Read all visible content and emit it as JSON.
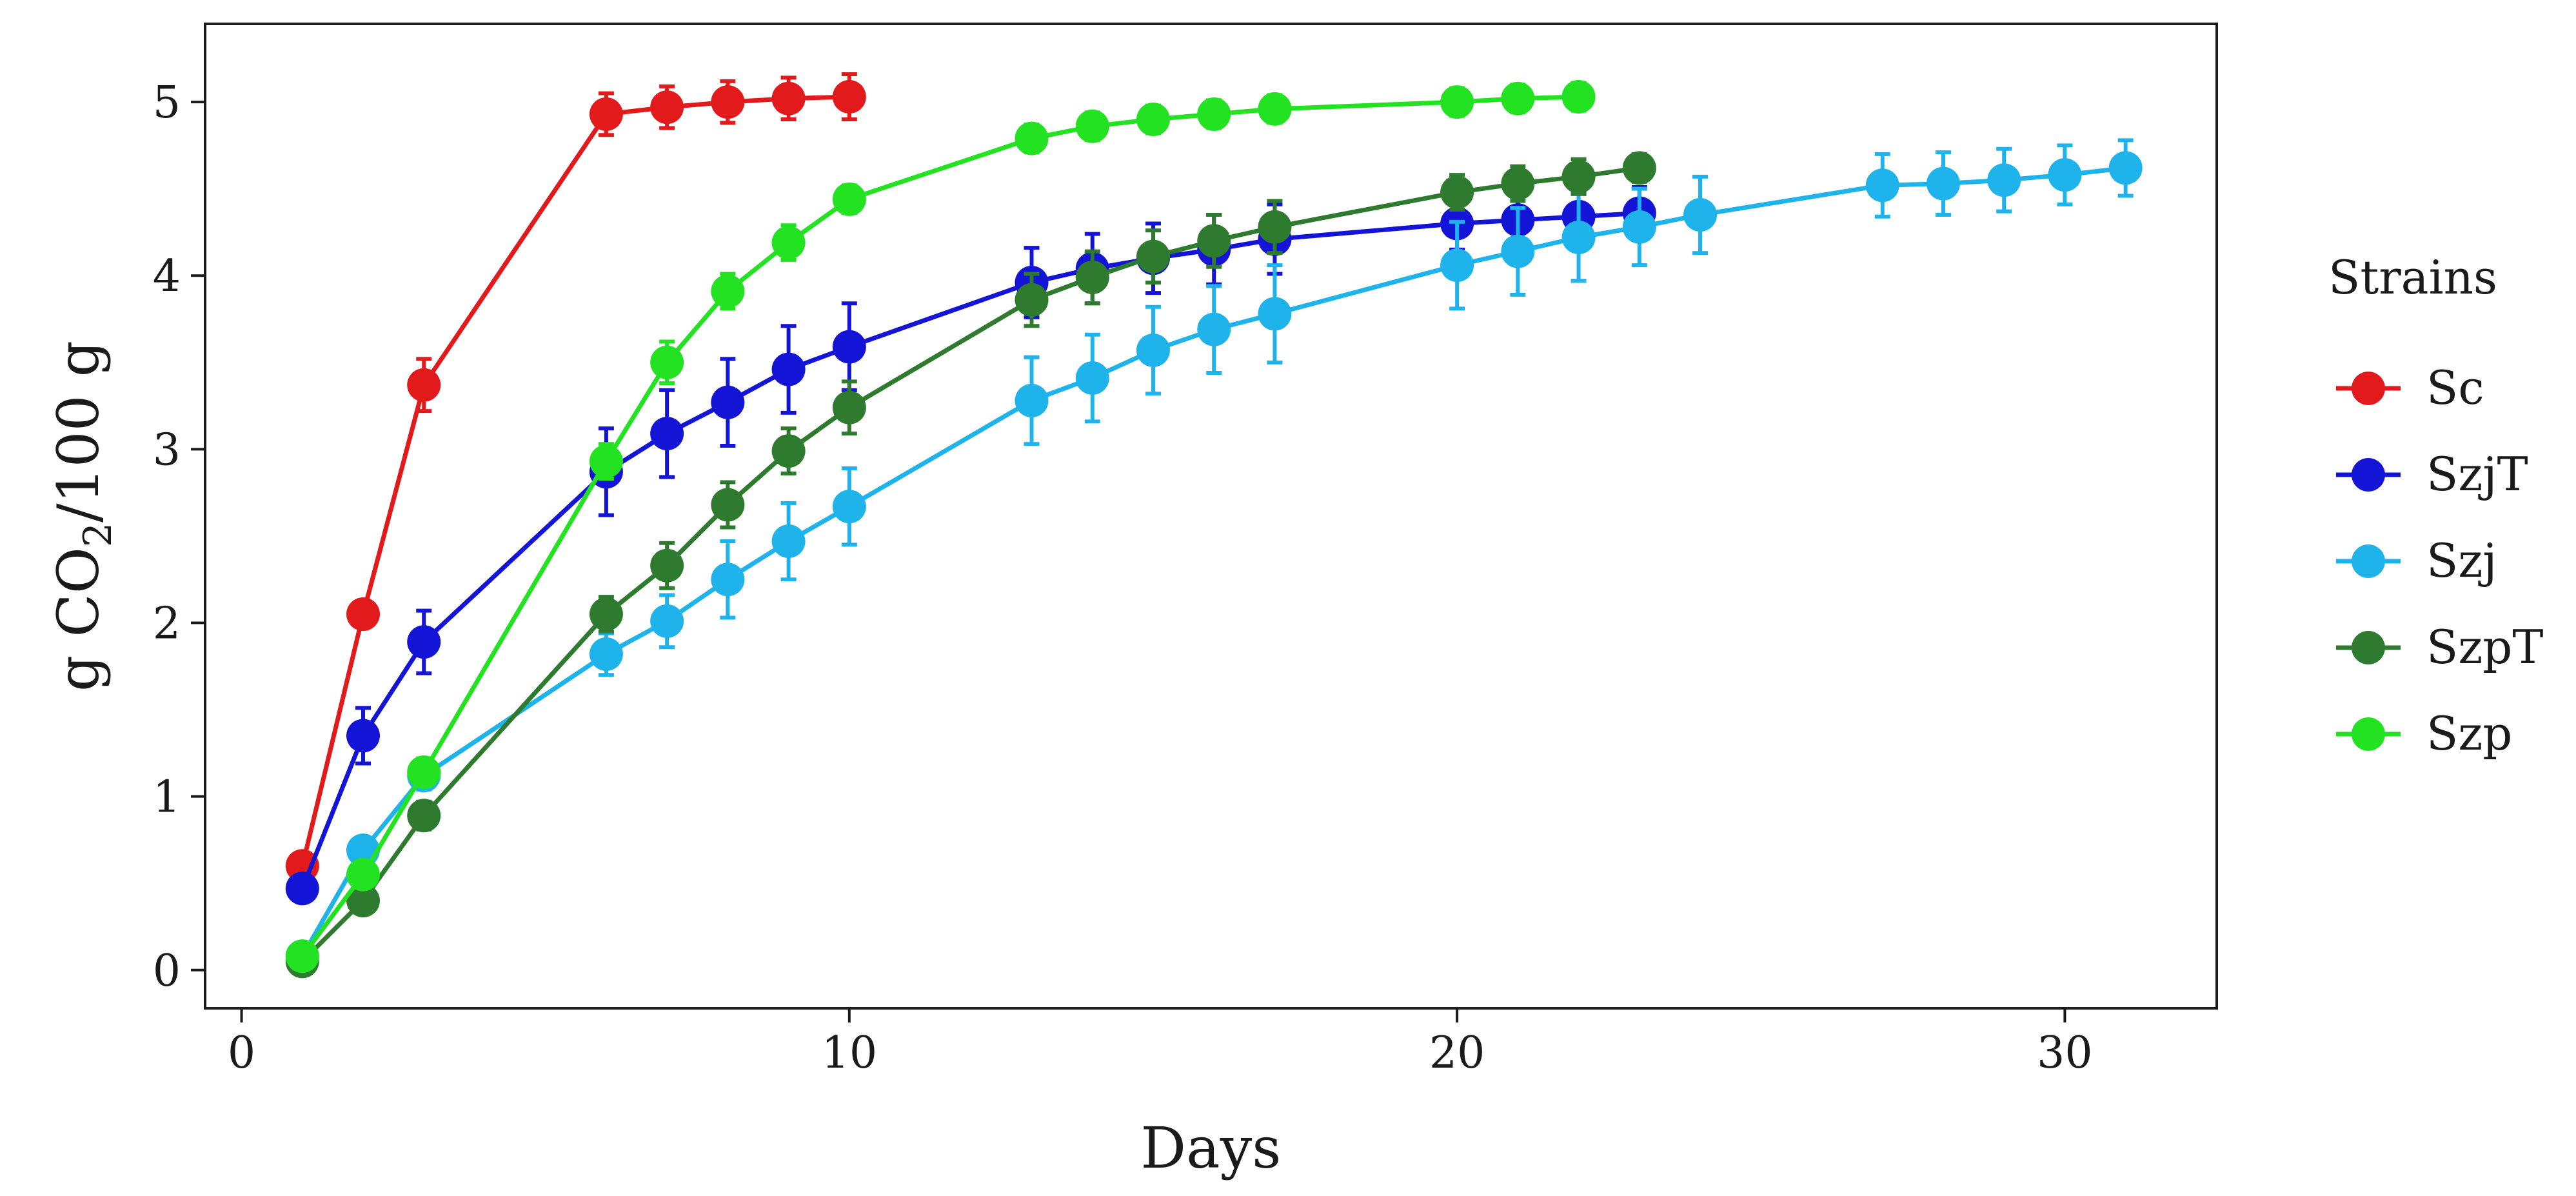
{
  "chart_data": {
    "type": "line",
    "title": "",
    "xlabel": "Days",
    "ylabel_prefix": "g CO",
    "ylabel_subscript": "2",
    "ylabel_suffix": "/100 g",
    "xlim": [
      -0.6,
      32.5
    ],
    "ylim": [
      -0.22,
      5.45
    ],
    "xticks": [
      0,
      10,
      20,
      30
    ],
    "yticks": [
      0,
      1,
      2,
      3,
      4,
      5
    ],
    "grid": false,
    "legend": {
      "title": "Strains",
      "placement": "right"
    },
    "series": [
      {
        "name": "Sc",
        "color": "#e31a1c",
        "x": [
          1,
          2,
          3,
          6,
          7,
          8,
          9,
          10
        ],
        "y": [
          0.6,
          2.05,
          3.37,
          4.93,
          4.97,
          5.0,
          5.02,
          5.03
        ],
        "err": [
          0.05,
          0.07,
          0.15,
          0.12,
          0.12,
          0.12,
          0.12,
          0.13
        ]
      },
      {
        "name": "SzjT",
        "color": "#1414d6",
        "x": [
          1,
          2,
          3,
          6,
          7,
          8,
          9,
          10,
          13,
          14,
          15,
          16,
          17,
          20,
          21,
          22,
          23
        ],
        "y": [
          0.47,
          1.35,
          1.89,
          2.87,
          3.09,
          3.27,
          3.46,
          3.59,
          3.96,
          4.04,
          4.1,
          4.15,
          4.21,
          4.3,
          4.32,
          4.34,
          4.36
        ],
        "err": [
          0.05,
          0.16,
          0.18,
          0.25,
          0.25,
          0.25,
          0.25,
          0.25,
          0.2,
          0.2,
          0.2,
          0.2,
          0.2,
          0.15,
          0.15,
          0.15,
          0.15
        ]
      },
      {
        "name": "Szj",
        "color": "#1eb3ea",
        "x": [
          1,
          2,
          3,
          6,
          7,
          8,
          9,
          10,
          13,
          14,
          15,
          16,
          17,
          20,
          21,
          22,
          23,
          24,
          27,
          28,
          29,
          30,
          31
        ],
        "y": [
          0.08,
          0.69,
          1.12,
          1.82,
          2.01,
          2.25,
          2.47,
          2.67,
          3.28,
          3.41,
          3.57,
          3.69,
          3.78,
          4.06,
          4.14,
          4.22,
          4.28,
          4.35,
          4.52,
          4.53,
          4.55,
          4.58,
          4.62
        ],
        "err": [
          0.03,
          0.05,
          0.08,
          0.12,
          0.15,
          0.22,
          0.22,
          0.22,
          0.25,
          0.25,
          0.25,
          0.25,
          0.28,
          0.25,
          0.25,
          0.25,
          0.22,
          0.22,
          0.18,
          0.18,
          0.18,
          0.17,
          0.16
        ]
      },
      {
        "name": "SzpT",
        "color": "#2e7a2e",
        "x": [
          1,
          2,
          3,
          6,
          7,
          8,
          9,
          10,
          13,
          14,
          15,
          16,
          17,
          20,
          21,
          22,
          23
        ],
        "y": [
          0.05,
          0.4,
          0.89,
          2.05,
          2.33,
          2.68,
          2.99,
          3.24,
          3.86,
          3.99,
          4.11,
          4.2,
          4.28,
          4.48,
          4.53,
          4.57,
          4.62
        ],
        "err": [
          0.03,
          0.05,
          0.08,
          0.1,
          0.13,
          0.13,
          0.13,
          0.15,
          0.15,
          0.15,
          0.15,
          0.15,
          0.15,
          0.1,
          0.1,
          0.1,
          0.08
        ]
      },
      {
        "name": "Szp",
        "color": "#22e222",
        "x": [
          1,
          2,
          3,
          6,
          7,
          8,
          9,
          10,
          13,
          14,
          15,
          16,
          17,
          20,
          21,
          22
        ],
        "y": [
          0.08,
          0.55,
          1.14,
          2.93,
          3.5,
          3.91,
          4.19,
          4.44,
          4.79,
          4.86,
          4.9,
          4.93,
          4.96,
          5.0,
          5.02,
          5.03
        ],
        "err": [
          0.03,
          0.05,
          0.08,
          0.1,
          0.12,
          0.1,
          0.1,
          0.08,
          0.08,
          0.08,
          0.08,
          0.08,
          0.08,
          0.08,
          0.08,
          0.08
        ]
      }
    ]
  }
}
